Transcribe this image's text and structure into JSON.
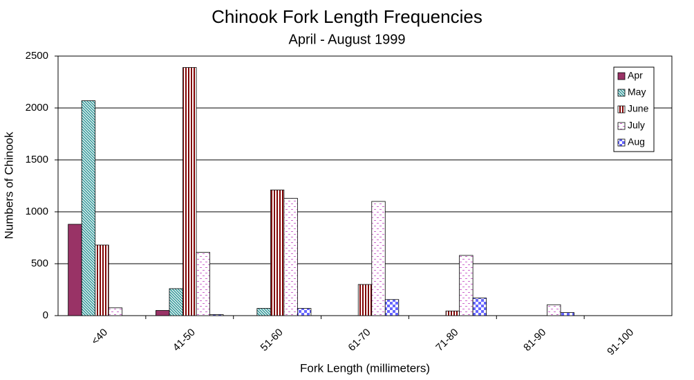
{
  "chart_data": {
    "type": "bar",
    "title": "Chinook Fork Length Frequencies",
    "subtitle": "April - August 1999",
    "x_label": "Fork Length (millimeters)",
    "y_label": "Numbers of Chinook",
    "categories": [
      "<40",
      "41-50",
      "51-60",
      "61-70",
      "71-80",
      "81-90",
      "91-100"
    ],
    "series": [
      {
        "name": "Apr",
        "color": "#993366",
        "values": [
          880,
          50,
          0,
          0,
          0,
          0,
          0
        ]
      },
      {
        "name": "May",
        "color": "#33999a",
        "values": [
          2070,
          260,
          70,
          0,
          0,
          0,
          0
        ]
      },
      {
        "name": "June",
        "color": "#800000",
        "values": [
          680,
          2390,
          1210,
          300,
          45,
          0,
          0
        ]
      },
      {
        "name": "July",
        "color": "#cc66cc",
        "values": [
          75,
          610,
          1130,
          1100,
          580,
          105,
          0
        ]
      },
      {
        "name": "Aug",
        "color": "#6666ff",
        "values": [
          0,
          10,
          70,
          155,
          170,
          30,
          0
        ]
      }
    ],
    "ylim": [
      0,
      2500
    ],
    "yticks": [
      0,
      500,
      1000,
      1500,
      2000,
      2500
    ],
    "grid": true,
    "legend": "top-right"
  }
}
